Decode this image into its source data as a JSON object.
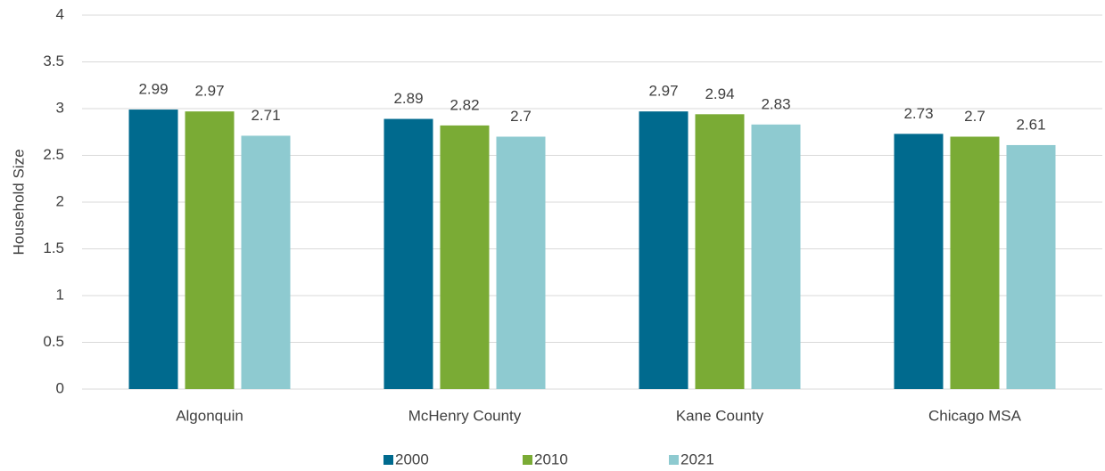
{
  "chart_data": {
    "type": "bar",
    "y_label": "Household Size",
    "categories": [
      "Algonquin",
      "McHenry County",
      "Kane County",
      "Chicago MSA"
    ],
    "series": [
      {
        "name": "2000",
        "color": "#006a8e",
        "values": [
          2.99,
          2.89,
          2.97,
          2.73
        ]
      },
      {
        "name": "2010",
        "color": "#7aab35",
        "values": [
          2.97,
          2.82,
          2.94,
          2.7
        ]
      },
      {
        "name": "2021",
        "color": "#8ecad0",
        "values": [
          2.71,
          2.7,
          2.83,
          2.61
        ]
      }
    ],
    "ylim": [
      0,
      4
    ],
    "yticks": [
      0,
      0.5,
      1,
      1.5,
      2,
      2.5,
      3,
      3.5,
      4
    ],
    "grid": true,
    "legend": "bottom"
  }
}
